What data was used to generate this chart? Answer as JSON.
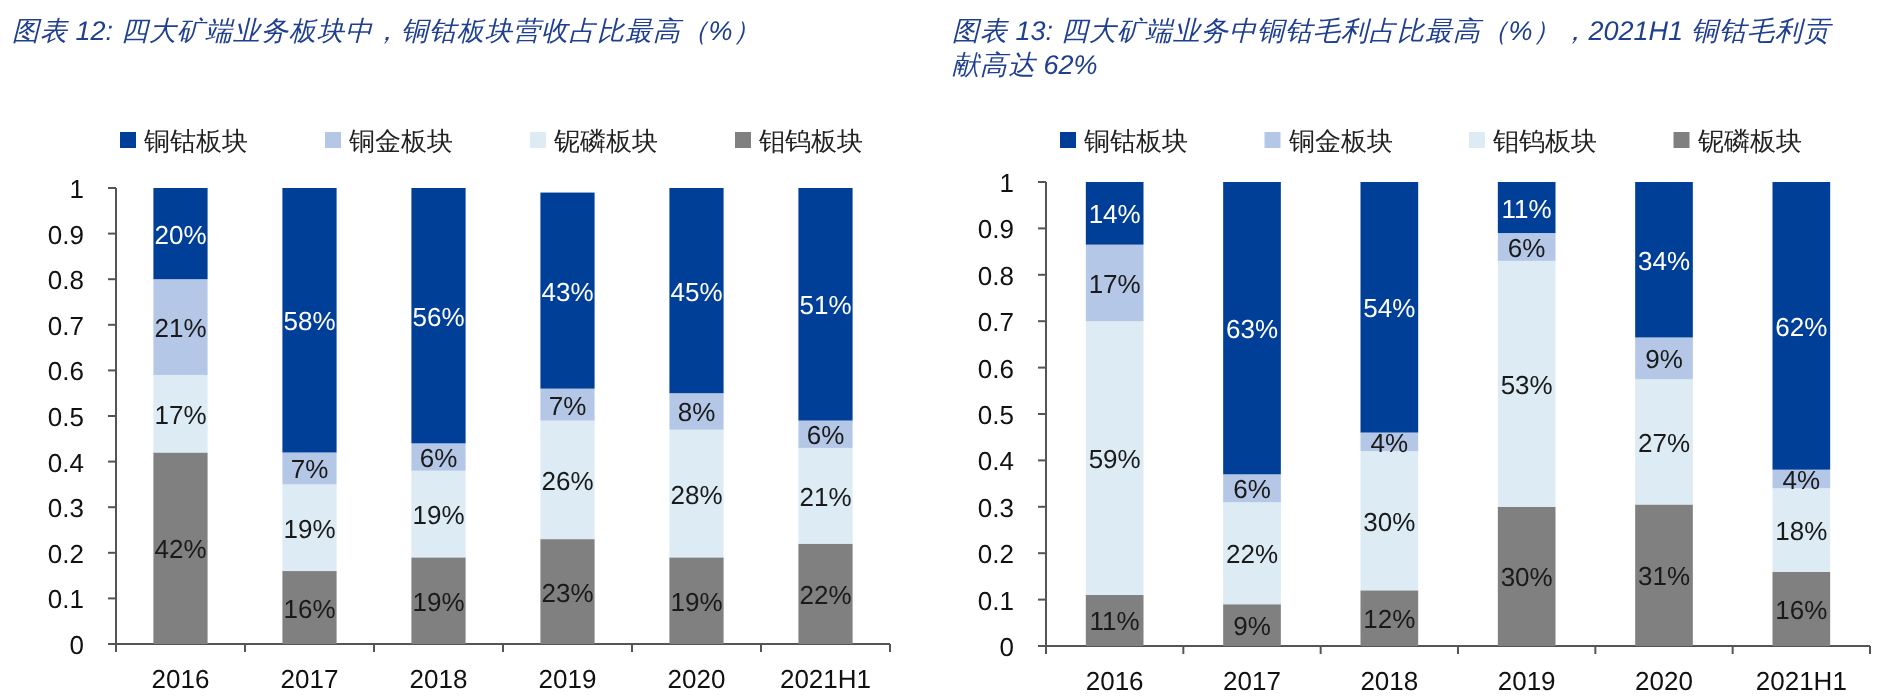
{
  "chart_data": [
    {
      "type": "bar",
      "title": "图表 12:  四大矿端业务板块中，铜钴板块营收占比最高（%）",
      "categories": [
        "2016",
        "2017",
        "2018",
        "2019",
        "2020",
        "2021H1"
      ],
      "stacked": true,
      "legend": "top",
      "ylim": [
        0,
        1
      ],
      "yticks": [
        0,
        0.1,
        0.2,
        0.3,
        0.4,
        0.5,
        0.6,
        0.7,
        0.8,
        0.9,
        1
      ],
      "series": [
        {
          "name": "钼钨板块",
          "color": "#808080",
          "values": [
            0.42,
            0.16,
            0.19,
            0.23,
            0.19,
            0.22
          ],
          "value_labels": [
            "42%",
            "16%",
            "19%",
            "23%",
            "19%",
            "22%"
          ]
        },
        {
          "name": "铌磷板块",
          "color": "#dcebf4",
          "values": [
            0.17,
            0.19,
            0.19,
            0.26,
            0.28,
            0.21
          ],
          "value_labels": [
            "17%",
            "19%",
            "19%",
            "26%",
            "28%",
            "21%"
          ]
        },
        {
          "name": "铜金板块",
          "color": "#b4c7e7",
          "values": [
            0.21,
            0.07,
            0.06,
            0.07,
            0.08,
            0.06
          ],
          "value_labels": [
            "21%",
            "7%",
            "6%",
            "7%",
            "8%",
            "6%"
          ]
        },
        {
          "name": "铜钴板块",
          "color": "#003f98",
          "values": [
            0.2,
            0.58,
            0.56,
            0.43,
            0.45,
            0.51
          ],
          "value_labels": [
            "20%",
            "58%",
            "56%",
            "43%",
            "45%",
            "51%"
          ]
        }
      ]
    },
    {
      "type": "bar",
      "title": "图表 13:  四大矿端业务中铜钴毛利占比最高（%），2021H1 铜钴毛利贡献高达 62%",
      "categories": [
        "2016",
        "2017",
        "2018",
        "2019",
        "2020",
        "2021H1"
      ],
      "stacked": true,
      "legend": "top",
      "ylim": [
        0,
        1
      ],
      "yticks": [
        0,
        0.1,
        0.2,
        0.3,
        0.4,
        0.5,
        0.6,
        0.7,
        0.8,
        0.9,
        1
      ],
      "series": [
        {
          "name": "铌磷板块",
          "color": "#808080",
          "values": [
            0.11,
            0.09,
            0.12,
            0.3,
            0.305,
            0.16
          ],
          "value_labels": [
            "11%",
            "9%",
            "12%",
            "30%",
            "31%",
            "16%"
          ]
        },
        {
          "name": "钼钨板块",
          "color": "#dcebf4",
          "values": [
            0.59,
            0.22,
            0.3,
            0.53,
            0.27,
            0.18
          ],
          "value_labels": [
            "59%",
            "22%",
            "30%",
            "53%",
            "27%",
            "18%"
          ]
        },
        {
          "name": "铜金板块",
          "color": "#b4c7e7",
          "values": [
            0.165,
            0.06,
            0.04,
            0.06,
            0.09,
            0.04
          ],
          "value_labels": [
            "17%",
            "6%",
            "4%",
            "6%",
            "9%",
            "4%"
          ]
        },
        {
          "name": "铜钴板块",
          "color": "#003f98",
          "values": [
            0.135,
            0.63,
            0.54,
            0.11,
            0.335,
            0.62
          ],
          "value_labels": [
            "14%",
            "63%",
            "54%",
            "11%",
            "34%",
            "62%"
          ]
        }
      ]
    }
  ]
}
